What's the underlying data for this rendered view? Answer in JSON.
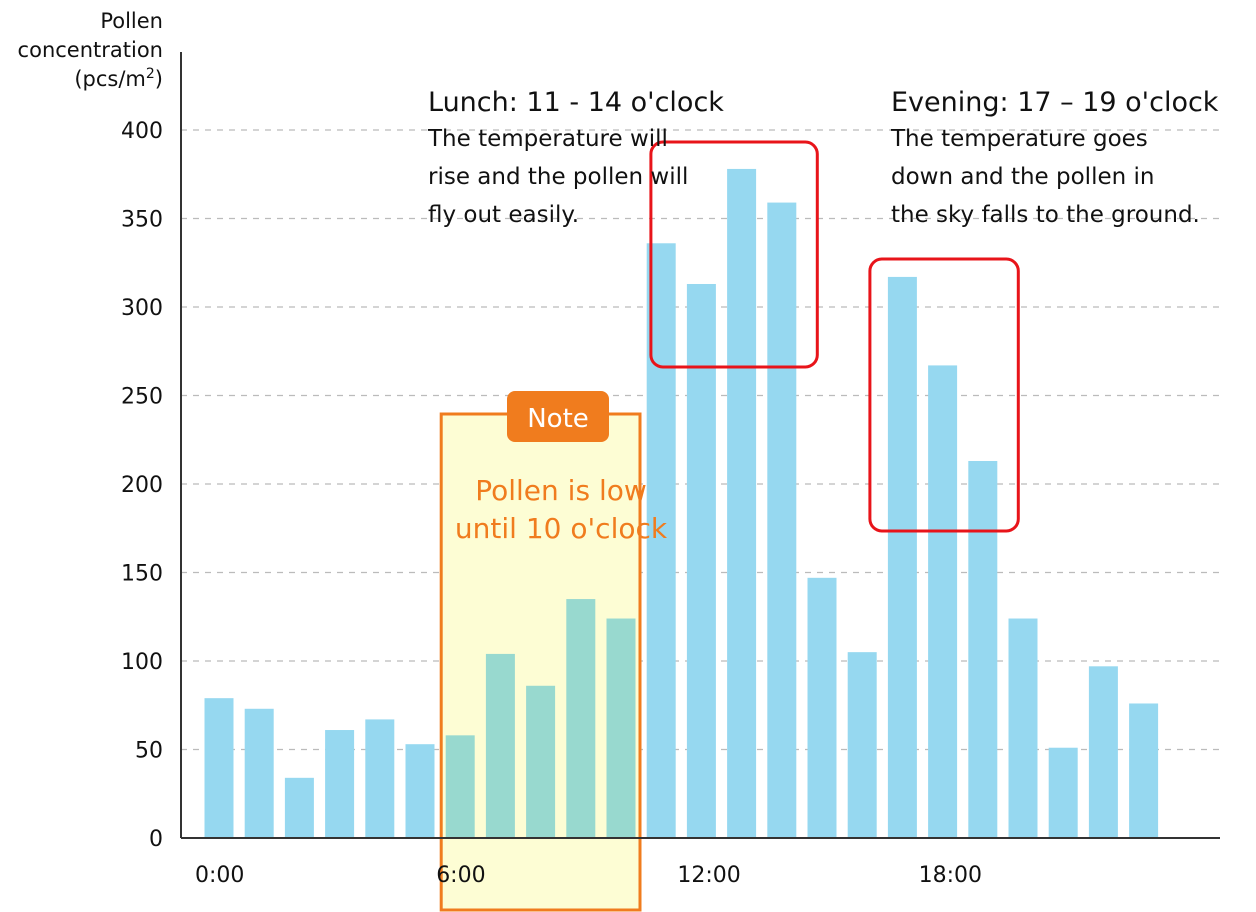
{
  "chart_data": {
    "type": "bar",
    "ylabel_lines": [
      "Pollen",
      "concentration",
      "(pcs/m",
      "2",
      ")"
    ],
    "ylim": [
      0,
      400
    ],
    "yticks": [
      0,
      50,
      100,
      150,
      200,
      250,
      300,
      350,
      400
    ],
    "hours": [
      0,
      1,
      2,
      3,
      4,
      5,
      6,
      7,
      8,
      9,
      10,
      11,
      12,
      13,
      14,
      15,
      16,
      17,
      18,
      19,
      20,
      21,
      22,
      23
    ],
    "values": [
      79,
      73,
      34,
      61,
      67,
      53,
      58,
      104,
      86,
      135,
      124,
      336,
      313,
      378,
      359,
      147,
      105,
      317,
      267,
      213,
      124,
      51,
      97,
      76
    ],
    "xticks": [
      {
        "hour": 0,
        "label": "0:00"
      },
      {
        "hour": 6,
        "label": "6:00"
      },
      {
        "hour": 12,
        "label": "12:00"
      },
      {
        "hour": 18,
        "label": "18:00"
      }
    ],
    "grid": "horizontal-dashed",
    "colors": {
      "bar": "#96d8f0",
      "bar_highlight": "#98d9cf",
      "note_fill": "#fdfdd4",
      "note_border": "#f07c1e",
      "highlight_border": "#e8141a",
      "grid": "#bbbbbb"
    },
    "note": {
      "tag": "Note",
      "lines": [
        "Pollen is low",
        "until 10 o'clock"
      ],
      "hours": [
        6,
        10
      ]
    },
    "annotations": [
      {
        "title": "Lunch: 11 - 14 o'clock",
        "lines": [
          "The temperature will",
          "rise and the pollen will",
          "fly out easily."
        ],
        "hours": [
          11,
          14
        ]
      },
      {
        "title": "Evening: 17 – 19 o'clock",
        "lines": [
          "The temperature goes",
          "down and the pollen in",
          "the sky falls to the ground."
        ],
        "hours": [
          17,
          19
        ]
      }
    ]
  }
}
